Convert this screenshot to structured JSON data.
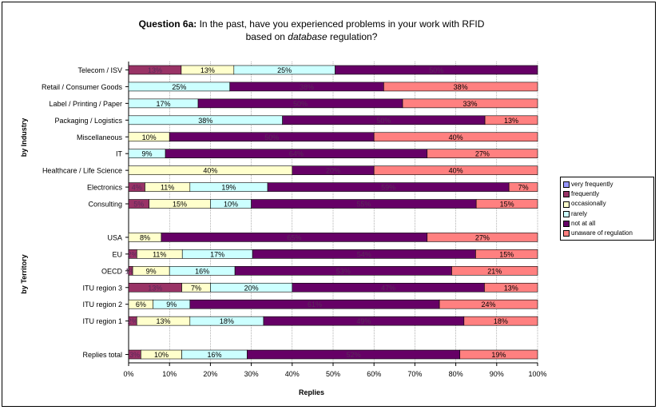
{
  "title": {
    "bold": "Question 6a:",
    "line1_rest": " In the past, have you experienced problems in your work with RFID",
    "line2_pre": "based on ",
    "line2_italic": "database",
    "line2_post": " regulation?"
  },
  "xlabel": "Replies",
  "group_labels": {
    "industry": "by Industry",
    "territory": "by Territory"
  },
  "colors": {
    "very frequently": "#9999ff",
    "frequently": "#993366",
    "occasionally": "#ffffcc",
    "rarely": "#ccffff",
    "not at all": "#660066",
    "unaware of regulation": "#ff8080"
  },
  "chart_data": {
    "type": "bar",
    "orientation": "horizontal",
    "stacked": "percent",
    "xlabel": "Replies",
    "xlim": [
      0,
      100
    ],
    "xticks": [
      "0%",
      "10%",
      "20%",
      "30%",
      "40%",
      "50%",
      "60%",
      "70%",
      "80%",
      "90%",
      "100%"
    ],
    "legend_position": "right",
    "series_names": [
      "very frequently",
      "frequently",
      "occasionally",
      "rarely",
      "not at all",
      "unaware of regulation"
    ],
    "rows": [
      {
        "category": "Telecom / ISV",
        "group": "industry",
        "values": [
          0,
          13,
          13,
          25,
          50,
          0
        ],
        "labels": [
          "",
          "13%",
          "13%",
          "25%",
          "50%",
          ""
        ]
      },
      {
        "category": "Retail / Consumer Goods",
        "group": "industry",
        "values": [
          0,
          0,
          0,
          25,
          38,
          38
        ],
        "labels": [
          "",
          "",
          "",
          "25%",
          "38%",
          "38%"
        ]
      },
      {
        "category": "Label / Printing / Paper",
        "group": "industry",
        "values": [
          0,
          0,
          0,
          17,
          50,
          33
        ],
        "labels": [
          "",
          "",
          "",
          "17%",
          "50%",
          "33%"
        ]
      },
      {
        "category": "Packaging / Logistics",
        "group": "industry",
        "values": [
          0,
          0,
          0,
          38,
          50,
          13
        ],
        "labels": [
          "",
          "",
          "",
          "38%",
          "50%",
          "13%"
        ]
      },
      {
        "category": "Miscellaneous",
        "group": "industry",
        "values": [
          0,
          0,
          10,
          0,
          50,
          40
        ],
        "labels": [
          "",
          "",
          "10%",
          "",
          "50%",
          "40%"
        ]
      },
      {
        "category": "IT",
        "group": "industry",
        "values": [
          0,
          0,
          0,
          9,
          64,
          27
        ],
        "labels": [
          "",
          "",
          "",
          "9%",
          "64%",
          "27%"
        ]
      },
      {
        "category": "Healthcare / Life Science",
        "group": "industry",
        "values": [
          0,
          0,
          40,
          0,
          20,
          40
        ],
        "labels": [
          "",
          "",
          "40%",
          "",
          "20%",
          "40%"
        ]
      },
      {
        "category": "Electronics",
        "group": "industry",
        "values": [
          0,
          4,
          11,
          19,
          59,
          7
        ],
        "labels": [
          "",
          "4%",
          "11%",
          "19%",
          "59%",
          "7%"
        ]
      },
      {
        "category": "Consulting",
        "group": "industry",
        "values": [
          0,
          5,
          15,
          10,
          55,
          15
        ],
        "labels": [
          "",
          "5%",
          "15%",
          "10%",
          "55%",
          "15%"
        ]
      },
      {
        "category": "USA",
        "group": "territory",
        "values": [
          0,
          0,
          8,
          0,
          65,
          27
        ],
        "labels": [
          "",
          "",
          "8%",
          "",
          "65%",
          "27%"
        ]
      },
      {
        "category": "EU",
        "group": "territory",
        "values": [
          0,
          2,
          11,
          17,
          54,
          15
        ],
        "labels": [
          "",
          "2%",
          "11%",
          "17%",
          "54%",
          "15%"
        ]
      },
      {
        "category": "OECD",
        "group": "territory",
        "values": [
          0,
          1,
          9,
          16,
          53,
          21
        ],
        "labels": [
          "",
          "1%",
          "9%",
          "16%",
          "53%",
          "21%"
        ]
      },
      {
        "category": "ITU region 3",
        "group": "territory",
        "values": [
          0,
          13,
          7,
          20,
          47,
          13
        ],
        "labels": [
          "",
          "13%",
          "7%",
          "20%",
          "47%",
          "13%"
        ]
      },
      {
        "category": "ITU region 2",
        "group": "territory",
        "values": [
          0,
          0,
          6,
          9,
          61,
          24
        ],
        "labels": [
          "",
          "",
          "6%",
          "9%",
          "61%",
          "24%"
        ]
      },
      {
        "category": "ITU region 1",
        "group": "territory",
        "values": [
          0,
          2,
          13,
          18,
          49,
          18
        ],
        "labels": [
          "",
          "2%",
          "13%",
          "18%",
          "49%",
          "18%"
        ]
      },
      {
        "category": "Replies total",
        "group": "total",
        "values": [
          0,
          3,
          10,
          16,
          52,
          19
        ],
        "labels": [
          "",
          "3%",
          "10%",
          "16%",
          "52%",
          "19%"
        ]
      }
    ]
  }
}
